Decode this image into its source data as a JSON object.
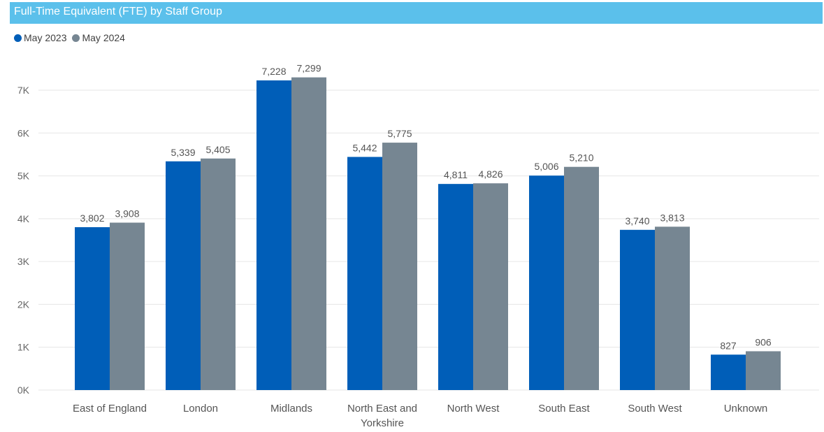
{
  "title": "Full-Time Equivalent (FTE) by Staff Group",
  "colors": {
    "title_bar": "#5bc0eb",
    "series_1": "#005eb8",
    "series_2": "#768692"
  },
  "chart_data": {
    "type": "bar",
    "title": "Full-Time Equivalent (FTE) by Staff Group",
    "categories": [
      "East of England",
      "London",
      "Midlands",
      "North East and Yorkshire",
      "North West",
      "South East",
      "South West",
      "Unknown"
    ],
    "series": [
      {
        "name": "May 2023",
        "color": "#005eb8",
        "values": [
          3802,
          5339,
          7228,
          5442,
          4811,
          5006,
          3740,
          827
        ]
      },
      {
        "name": "May 2024",
        "color": "#768692",
        "values": [
          3908,
          5405,
          7299,
          5775,
          4826,
          5210,
          3813,
          906
        ]
      }
    ],
    "data_labels": [
      [
        "3,802",
        "5,339",
        "7,228",
        "5,442",
        "4,811",
        "5,006",
        "3,740",
        "827"
      ],
      [
        "3,908",
        "5,405",
        "7,299",
        "5,775",
        "4,826",
        "5,210",
        "3,813",
        "906"
      ]
    ],
    "y_ticks": [
      0,
      1000,
      2000,
      3000,
      4000,
      5000,
      6000,
      7000
    ],
    "y_tick_labels": [
      "0K",
      "1K",
      "2K",
      "3K",
      "4K",
      "5K",
      "6K",
      "7K"
    ],
    "ylim": [
      0,
      7000
    ],
    "grid": true,
    "legend_position": "top-left",
    "xlabel": "",
    "ylabel": ""
  }
}
